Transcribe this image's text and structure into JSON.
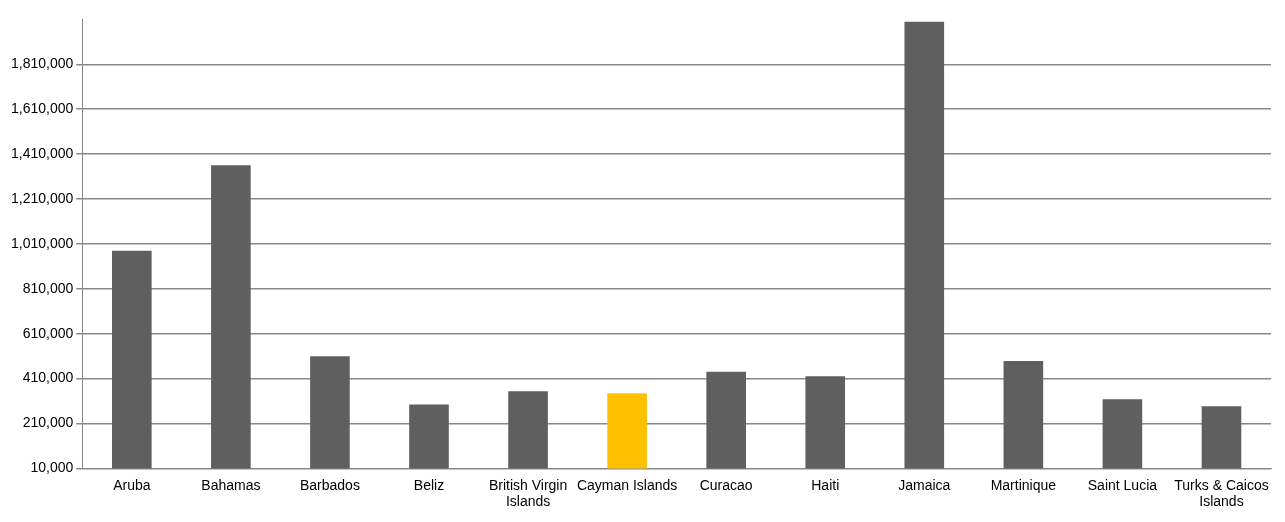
{
  "chart_data": {
    "type": "bar",
    "categories": [
      "Aruba",
      "Bahamas",
      "Barbados",
      "Beliz",
      "British Virgin Islands",
      "Cayman Islands",
      "Curacao",
      "Haiti",
      "Jamaica",
      "Martinique",
      "Saint Lucia",
      "Turks & Caicos Islands"
    ],
    "values": [
      980000,
      1360000,
      510000,
      295000,
      354000,
      345000,
      440000,
      420000,
      2000000,
      488000,
      318000,
      287000
    ],
    "colors": [
      "#5f5f5f",
      "#5f5f5f",
      "#5f5f5f",
      "#5f5f5f",
      "#5f5f5f",
      "#ffc000",
      "#5f5f5f",
      "#5f5f5f",
      "#5f5f5f",
      "#5f5f5f",
      "#5f5f5f",
      "#5f5f5f"
    ],
    "ylim": [
      10000,
      2010000
    ],
    "yticks": [
      {
        "value": 10000,
        "label": "10,000"
      },
      {
        "value": 210000,
        "label": "210,000"
      },
      {
        "value": 410000,
        "label": "410,000"
      },
      {
        "value": 610000,
        "label": "610,000"
      },
      {
        "value": 810000,
        "label": "810,000"
      },
      {
        "value": 1010000,
        "label": "1,010,000"
      },
      {
        "value": 1210000,
        "label": "1,210,000"
      },
      {
        "value": 1410000,
        "label": "1,410,000"
      },
      {
        "value": 1610000,
        "label": "1,610,000"
      },
      {
        "value": 1810000,
        "label": "1,810,000"
      }
    ],
    "grid": "y",
    "legend": false
  }
}
